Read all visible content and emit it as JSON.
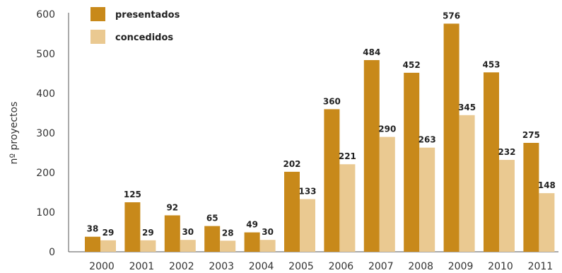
{
  "chart_data": {
    "type": "bar",
    "title": "",
    "xlabel": "",
    "ylabel": "nº proyectos",
    "ylim": [
      0,
      600
    ],
    "yticks": [
      0,
      100,
      200,
      300,
      400,
      500,
      600
    ],
    "grid": false,
    "legend_position": "top-left",
    "categories": [
      "2000",
      "2001",
      "2002",
      "2003",
      "2004",
      "2005",
      "2006",
      "2007",
      "2008",
      "2009",
      "2010",
      "2011"
    ],
    "series": [
      {
        "name": "presentados",
        "color": "#C8891A",
        "values": [
          38,
          125,
          92,
          65,
          49,
          202,
          360,
          484,
          452,
          576,
          453,
          275
        ],
        "labels": [
          "38",
          "125",
          "92",
          "65",
          "49",
          "202",
          "360",
          "484",
          "452",
          "576",
          "453",
          "275"
        ]
      },
      {
        "name": "concedidos",
        "color": "#EAC991",
        "values": [
          29,
          29,
          30,
          28,
          30,
          133,
          221,
          290,
          263,
          345,
          232,
          148
        ],
        "labels": [
          "29",
          "29",
          "30",
          "28",
          "30",
          "133",
          "221",
          "290",
          "263",
          "345",
          "232",
          "148"
        ]
      }
    ]
  }
}
